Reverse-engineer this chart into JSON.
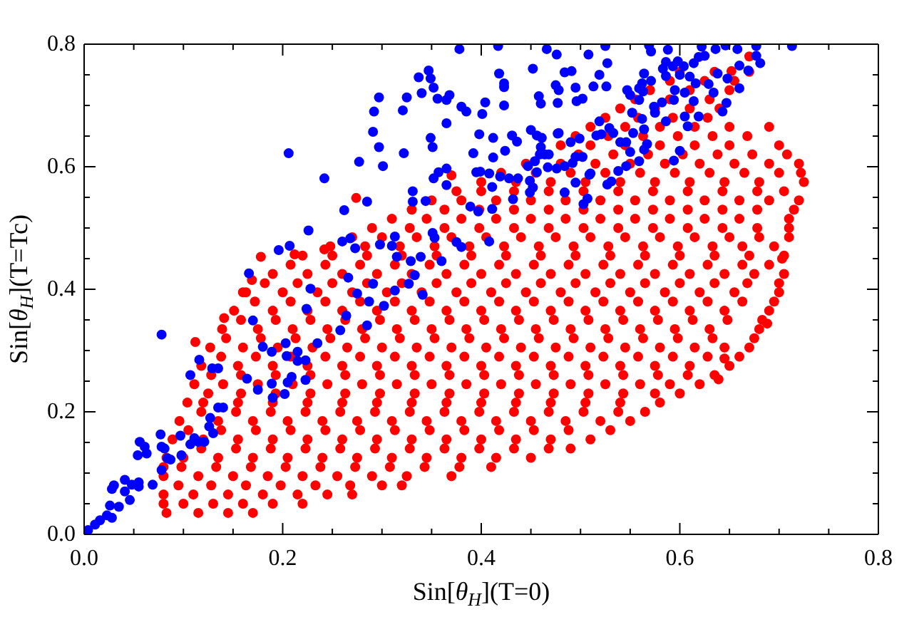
{
  "chart_data": {
    "type": "scatter",
    "xlabel": "Sin[θ$_{H}$](T=0)",
    "ylabel": "Sin[θ$_{H}$](T=Tc)",
    "marker": "circle",
    "xlim": [
      0,
      0.8
    ],
    "ylim": [
      0,
      0.8
    ],
    "xticks": [
      {
        "value": 0,
        "label": "0.0"
      },
      {
        "value": 0.05,
        "label": null
      },
      {
        "value": 0.1,
        "label": null
      },
      {
        "value": 0.15,
        "label": null
      },
      0.2,
      {
        "value": 0.25,
        "label": null
      },
      {
        "value": 0.3,
        "label": null
      },
      {
        "value": 0.35,
        "label": null
      },
      0.4,
      {
        "value": 0.45,
        "label": null
      },
      {
        "value": 0.5,
        "label": null
      },
      {
        "value": 0.55,
        "label": null
      },
      0.6,
      {
        "value": 0.65,
        "label": null
      },
      {
        "value": 0.7,
        "label": null
      },
      {
        "value": 0.75,
        "label": null
      },
      0.8
    ],
    "yticks": [
      {
        "value": 0,
        "label": "0.0"
      },
      {
        "value": 0.05,
        "label": null
      },
      {
        "value": 0.1,
        "label": null
      },
      {
        "value": 0.15,
        "label": null
      },
      0.2,
      {
        "value": 0.25,
        "label": null
      },
      {
        "value": 0.3,
        "label": null
      },
      {
        "value": 0.35,
        "label": null
      },
      0.4,
      {
        "value": 0.45,
        "label": null
      },
      {
        "value": 0.5,
        "label": null
      },
      {
        "value": 0.55,
        "label": null
      },
      0.6,
      {
        "value": 0.65,
        "label": null
      },
      {
        "value": 0.7,
        "label": null
      },
      {
        "value": 0.75,
        "label": null
      },
      0.8
    ],
    "series": [
      {
        "color": "#ff0000",
        "x": [
          0.083,
          0.115,
          0.145,
          0.17,
          0.08,
          0.11,
          0.145,
          0.18,
          0.215,
          0.245,
          0.27,
          0.08,
          0.115,
          0.15,
          0.185,
          0.22,
          0.255,
          0.29,
          0.325,
          0.37,
          0.083,
          0.1,
          0.135,
          0.17,
          0.205,
          0.24,
          0.275,
          0.31,
          0.345,
          0.38,
          0.415,
          0.45,
          0.089,
          0.12,
          0.155,
          0.19,
          0.225,
          0.26,
          0.295,
          0.33,
          0.365,
          0.4,
          0.435,
          0.47,
          0.51,
          0.096,
          0.135,
          0.17,
          0.205,
          0.24,
          0.275,
          0.31,
          0.345,
          0.38,
          0.415,
          0.45,
          0.485,
          0.52,
          0.55,
          0.104,
          0.12,
          0.155,
          0.19,
          0.225,
          0.26,
          0.295,
          0.33,
          0.365,
          0.4,
          0.435,
          0.47,
          0.505,
          0.54,
          0.58,
          0.111,
          0.14,
          0.175,
          0.21,
          0.245,
          0.28,
          0.315,
          0.35,
          0.385,
          0.42,
          0.455,
          0.49,
          0.525,
          0.56,
          0.59,
          0.62,
          0.118,
          0.155,
          0.19,
          0.225,
          0.26,
          0.295,
          0.33,
          0.365,
          0.4,
          0.435,
          0.47,
          0.505,
          0.54,
          0.575,
          0.61,
          0.65,
          0.127,
          0.16,
          0.195,
          0.23,
          0.265,
          0.3,
          0.335,
          0.37,
          0.405,
          0.44,
          0.475,
          0.51,
          0.545,
          0.58,
          0.615,
          0.645,
          0.67,
          0.139,
          0.175,
          0.21,
          0.245,
          0.28,
          0.315,
          0.35,
          0.385,
          0.42,
          0.455,
          0.49,
          0.525,
          0.56,
          0.595,
          0.63,
          0.68,
          0.151,
          0.19,
          0.225,
          0.26,
          0.295,
          0.33,
          0.365,
          0.4,
          0.435,
          0.47,
          0.505,
          0.54,
          0.575,
          0.61,
          0.645,
          0.69,
          0.163,
          0.2,
          0.235,
          0.27,
          0.305,
          0.34,
          0.375,
          0.41,
          0.445,
          0.48,
          0.515,
          0.55,
          0.585,
          0.62,
          0.655,
          0.7,
          0.19,
          0.225,
          0.26,
          0.295,
          0.33,
          0.365,
          0.4,
          0.435,
          0.47,
          0.505,
          0.54,
          0.575,
          0.61,
          0.645,
          0.675,
          0.705,
          0.22,
          0.25,
          0.285,
          0.32,
          0.355,
          0.39,
          0.425,
          0.46,
          0.495,
          0.53,
          0.565,
          0.6,
          0.635,
          0.67,
          0.705,
          0.27,
          0.3,
          0.335,
          0.37,
          0.405,
          0.44,
          0.475,
          0.51,
          0.545,
          0.58,
          0.615,
          0.65,
          0.68,
          0.71,
          0.31,
          0.345,
          0.38,
          0.415,
          0.45,
          0.485,
          0.52,
          0.555,
          0.59,
          0.625,
          0.66,
          0.71,
          0.35,
          0.38,
          0.415,
          0.45,
          0.485,
          0.52,
          0.555,
          0.59,
          0.625,
          0.66,
          0.69,
          0.72,
          0.4,
          0.435,
          0.47,
          0.505,
          0.54,
          0.575,
          0.61,
          0.645,
          0.68,
          0.725,
          0.445,
          0.48,
          0.515,
          0.55,
          0.585,
          0.62,
          0.655,
          0.69,
          0.72,
          0.48,
          0.51,
          0.545,
          0.58,
          0.615,
          0.65,
          0.7,
          0.51,
          0.545,
          0.58,
          0.615,
          0.65,
          0.69,
          0.54,
          0.575,
          0.61,
          0.64,
          0.57,
          0.61,
          0.65,
          0.6,
          0.635,
          0.67,
          0.112,
          0.141,
          0.16,
          0.169,
          0.178,
          0.212,
          0.242,
          0.274,
          0.37,
          0.639,
          0.645,
          0.688,
          0.703,
          0.652,
          0.67,
          0.08,
          0.1,
          0.13,
          0.16,
          0.19,
          0.22,
          0.095,
          0.128,
          0.163,
          0.198,
          0.233,
          0.268,
          0.3,
          0.32,
          0.08,
          0.098,
          0.133,
          0.168,
          0.203,
          0.238,
          0.273,
          0.308,
          0.343,
          0.378,
          0.41,
          0.118,
          0.153,
          0.188,
          0.223,
          0.258,
          0.293,
          0.328,
          0.363,
          0.398,
          0.433,
          0.468,
          0.49,
          0.105,
          0.138,
          0.173,
          0.208,
          0.243,
          0.278,
          0.313,
          0.348,
          0.383,
          0.418,
          0.453,
          0.488,
          0.53,
          0.118,
          0.153,
          0.188,
          0.223,
          0.258,
          0.293,
          0.328,
          0.363,
          0.398,
          0.433,
          0.468,
          0.503,
          0.538,
          0.565,
          0.125,
          0.158,
          0.193,
          0.228,
          0.263,
          0.298,
          0.333,
          0.368,
          0.403,
          0.438,
          0.473,
          0.508,
          0.543,
          0.575,
          0.6,
          0.128,
          0.158,
          0.193,
          0.228,
          0.263,
          0.298,
          0.333,
          0.368,
          0.403,
          0.438,
          0.473,
          0.508,
          0.543,
          0.578,
          0.608,
          0.635,
          0.138,
          0.173,
          0.208,
          0.243,
          0.278,
          0.313,
          0.348,
          0.383,
          0.418,
          0.453,
          0.488,
          0.523,
          0.558,
          0.593,
          0.628,
          0.66,
          0.143,
          0.178,
          0.213,
          0.248,
          0.283,
          0.318,
          0.353,
          0.388,
          0.423,
          0.458,
          0.493,
          0.528,
          0.563,
          0.598,
          0.633,
          0.675,
          0.158,
          0.193,
          0.228,
          0.263,
          0.298,
          0.333,
          0.368,
          0.403,
          0.438,
          0.473,
          0.508,
          0.543,
          0.578,
          0.613,
          0.648,
          0.683,
          0.172,
          0.208,
          0.243,
          0.278,
          0.313,
          0.348,
          0.383,
          0.418,
          0.453,
          0.488,
          0.523,
          0.558,
          0.593,
          0.628,
          0.663,
          0.695,
          0.182,
          0.215,
          0.25,
          0.285,
          0.32,
          0.355,
          0.39,
          0.425,
          0.46,
          0.495,
          0.53,
          0.565,
          0.6,
          0.635,
          0.668,
          0.7,
          0.208,
          0.243,
          0.278,
          0.313,
          0.348,
          0.383,
          0.418,
          0.453,
          0.488,
          0.523,
          0.558,
          0.593,
          0.628,
          0.663,
          0.69,
          0.248,
          0.283,
          0.318,
          0.353,
          0.388,
          0.423,
          0.458,
          0.493,
          0.528,
          0.563,
          0.598,
          0.633,
          0.663,
          0.695,
          0.29,
          0.328,
          0.363,
          0.398,
          0.433,
          0.468,
          0.503,
          0.538,
          0.573,
          0.608,
          0.643,
          0.678,
          0.71,
          0.33,
          0.363,
          0.398,
          0.433,
          0.468,
          0.503,
          0.538,
          0.573,
          0.608,
          0.643,
          0.678,
          0.715,
          0.375,
          0.4,
          0.433,
          0.468,
          0.503,
          0.538,
          0.573,
          0.608,
          0.643,
          0.678,
          0.705,
          0.42,
          0.455,
          0.49,
          0.525,
          0.56,
          0.595,
          0.63,
          0.665,
          0.7,
          0.722,
          0.498,
          0.533,
          0.568,
          0.603,
          0.638,
          0.673,
          0.708,
          0.495,
          0.528,
          0.563,
          0.598,
          0.633,
          0.668,
          0.525,
          0.558,
          0.593,
          0.628,
          0.555,
          0.59,
          0.63,
          0.59,
          0.625,
          0.655
        ],
        "values": [
          0.035,
          0.035,
          0.035,
          0.035,
          0.065,
          0.065,
          0.065,
          0.065,
          0.065,
          0.065,
          0.065,
          0.095,
          0.095,
          0.095,
          0.095,
          0.095,
          0.095,
          0.095,
          0.095,
          0.095,
          0.125,
          0.125,
          0.125,
          0.125,
          0.125,
          0.125,
          0.125,
          0.125,
          0.125,
          0.125,
          0.125,
          0.125,
          0.155,
          0.155,
          0.155,
          0.155,
          0.155,
          0.155,
          0.155,
          0.155,
          0.155,
          0.155,
          0.155,
          0.155,
          0.155,
          0.185,
          0.185,
          0.185,
          0.185,
          0.185,
          0.185,
          0.185,
          0.185,
          0.185,
          0.185,
          0.185,
          0.185,
          0.185,
          0.185,
          0.215,
          0.215,
          0.215,
          0.215,
          0.215,
          0.215,
          0.215,
          0.215,
          0.215,
          0.215,
          0.215,
          0.215,
          0.215,
          0.215,
          0.215,
          0.245,
          0.245,
          0.245,
          0.245,
          0.245,
          0.245,
          0.245,
          0.245,
          0.245,
          0.245,
          0.245,
          0.245,
          0.245,
          0.245,
          0.245,
          0.245,
          0.275,
          0.275,
          0.275,
          0.275,
          0.275,
          0.275,
          0.275,
          0.275,
          0.275,
          0.275,
          0.275,
          0.275,
          0.275,
          0.275,
          0.275,
          0.275,
          0.305,
          0.305,
          0.305,
          0.305,
          0.305,
          0.305,
          0.305,
          0.305,
          0.305,
          0.305,
          0.305,
          0.305,
          0.305,
          0.305,
          0.305,
          0.305,
          0.305,
          0.335,
          0.335,
          0.335,
          0.335,
          0.335,
          0.335,
          0.335,
          0.335,
          0.335,
          0.335,
          0.335,
          0.335,
          0.335,
          0.335,
          0.335,
          0.335,
          0.365,
          0.365,
          0.365,
          0.365,
          0.365,
          0.365,
          0.365,
          0.365,
          0.365,
          0.365,
          0.365,
          0.365,
          0.365,
          0.365,
          0.365,
          0.365,
          0.395,
          0.395,
          0.395,
          0.395,
          0.395,
          0.395,
          0.395,
          0.395,
          0.395,
          0.395,
          0.395,
          0.395,
          0.395,
          0.395,
          0.395,
          0.395,
          0.425,
          0.425,
          0.425,
          0.425,
          0.425,
          0.425,
          0.425,
          0.425,
          0.425,
          0.425,
          0.425,
          0.425,
          0.425,
          0.425,
          0.425,
          0.425,
          0.455,
          0.455,
          0.455,
          0.455,
          0.455,
          0.455,
          0.455,
          0.455,
          0.455,
          0.455,
          0.455,
          0.455,
          0.455,
          0.455,
          0.455,
          0.485,
          0.485,
          0.485,
          0.485,
          0.485,
          0.485,
          0.485,
          0.485,
          0.485,
          0.485,
          0.485,
          0.485,
          0.485,
          0.485,
          0.515,
          0.515,
          0.515,
          0.515,
          0.515,
          0.515,
          0.515,
          0.515,
          0.515,
          0.515,
          0.515,
          0.515,
          0.545,
          0.545,
          0.545,
          0.545,
          0.545,
          0.545,
          0.545,
          0.545,
          0.545,
          0.545,
          0.545,
          0.545,
          0.575,
          0.575,
          0.575,
          0.575,
          0.575,
          0.575,
          0.575,
          0.575,
          0.575,
          0.575,
          0.605,
          0.605,
          0.605,
          0.605,
          0.605,
          0.605,
          0.605,
          0.605,
          0.605,
          0.635,
          0.635,
          0.635,
          0.635,
          0.635,
          0.635,
          0.635,
          0.665,
          0.665,
          0.665,
          0.665,
          0.665,
          0.665,
          0.695,
          0.695,
          0.695,
          0.695,
          0.725,
          0.725,
          0.725,
          0.755,
          0.755,
          0.755,
          0.314,
          0.353,
          0.395,
          0.415,
          0.453,
          0.457,
          0.465,
          0.549,
          0.586,
          0.253,
          0.287,
          0.344,
          0.45,
          0.756,
          0.78,
          0.05,
          0.05,
          0.05,
          0.05,
          0.05,
          0.05,
          0.08,
          0.08,
          0.08,
          0.08,
          0.08,
          0.08,
          0.08,
          0.08,
          0.11,
          0.11,
          0.11,
          0.11,
          0.11,
          0.11,
          0.11,
          0.11,
          0.11,
          0.11,
          0.11,
          0.14,
          0.14,
          0.14,
          0.14,
          0.14,
          0.14,
          0.14,
          0.14,
          0.14,
          0.14,
          0.14,
          0.14,
          0.17,
          0.17,
          0.17,
          0.17,
          0.17,
          0.17,
          0.17,
          0.17,
          0.17,
          0.17,
          0.17,
          0.17,
          0.17,
          0.2,
          0.2,
          0.2,
          0.2,
          0.2,
          0.2,
          0.2,
          0.2,
          0.2,
          0.2,
          0.2,
          0.2,
          0.2,
          0.2,
          0.23,
          0.23,
          0.23,
          0.23,
          0.23,
          0.23,
          0.23,
          0.23,
          0.23,
          0.23,
          0.23,
          0.23,
          0.23,
          0.23,
          0.23,
          0.26,
          0.26,
          0.26,
          0.26,
          0.26,
          0.26,
          0.26,
          0.26,
          0.26,
          0.26,
          0.26,
          0.26,
          0.26,
          0.26,
          0.26,
          0.26,
          0.29,
          0.29,
          0.29,
          0.29,
          0.29,
          0.29,
          0.29,
          0.29,
          0.29,
          0.29,
          0.29,
          0.29,
          0.29,
          0.29,
          0.29,
          0.29,
          0.32,
          0.32,
          0.32,
          0.32,
          0.32,
          0.32,
          0.32,
          0.32,
          0.32,
          0.32,
          0.32,
          0.32,
          0.32,
          0.32,
          0.32,
          0.32,
          0.35,
          0.35,
          0.35,
          0.35,
          0.35,
          0.35,
          0.35,
          0.35,
          0.35,
          0.35,
          0.35,
          0.35,
          0.35,
          0.35,
          0.35,
          0.35,
          0.38,
          0.38,
          0.38,
          0.38,
          0.38,
          0.38,
          0.38,
          0.38,
          0.38,
          0.38,
          0.38,
          0.38,
          0.38,
          0.38,
          0.38,
          0.38,
          0.41,
          0.41,
          0.41,
          0.41,
          0.41,
          0.41,
          0.41,
          0.41,
          0.41,
          0.41,
          0.41,
          0.41,
          0.41,
          0.41,
          0.41,
          0.41,
          0.44,
          0.44,
          0.44,
          0.44,
          0.44,
          0.44,
          0.44,
          0.44,
          0.44,
          0.44,
          0.44,
          0.44,
          0.44,
          0.44,
          0.44,
          0.47,
          0.47,
          0.47,
          0.47,
          0.47,
          0.47,
          0.47,
          0.47,
          0.47,
          0.47,
          0.47,
          0.47,
          0.47,
          0.47,
          0.5,
          0.5,
          0.5,
          0.5,
          0.5,
          0.5,
          0.5,
          0.5,
          0.5,
          0.5,
          0.5,
          0.5,
          0.5,
          0.53,
          0.53,
          0.53,
          0.53,
          0.53,
          0.53,
          0.53,
          0.53,
          0.53,
          0.53,
          0.53,
          0.53,
          0.56,
          0.56,
          0.56,
          0.56,
          0.56,
          0.56,
          0.56,
          0.56,
          0.56,
          0.56,
          0.56,
          0.59,
          0.59,
          0.59,
          0.59,
          0.59,
          0.59,
          0.59,
          0.59,
          0.59,
          0.59,
          0.62,
          0.62,
          0.62,
          0.62,
          0.62,
          0.62,
          0.62,
          0.65,
          0.65,
          0.65,
          0.65,
          0.65,
          0.65,
          0.68,
          0.68,
          0.68,
          0.68,
          0.71,
          0.71,
          0.71,
          0.74,
          0.74,
          0.74
        ]
      },
      {
        "color": "#0000ff",
        "x": [
          0.004,
          0.011,
          0.016,
          0.023,
          0.028,
          0.026,
          0.035,
          0.028,
          0.03,
          0.041,
          0.041,
          0.046,
          0.048,
          0.055,
          0.055,
          0.069,
          0.054,
          0.056,
          0.061,
          0.063,
          0.077,
          0.078,
          0.081,
          0.084,
          0.087,
          0.078,
          0.078,
          0.097,
          0.098,
          0.107,
          0.111,
          0.115,
          0.121,
          0.126,
          0.13,
          0.127,
          0.135,
          0.14,
          0.107,
          0.116,
          0.129,
          0.135,
          0.17,
          0.164,
          0.175,
          0.18,
          0.189,
          0.189,
          0.19,
          0.203,
          0.202,
          0.204,
          0.205,
          0.209,
          0.215,
          0.215,
          0.223,
          0.223,
          0.224,
          0.235,
          0.228,
          0.258,
          0.264,
          0.275,
          0.285,
          0.287,
          0.302,
          0.313,
          0.341,
          0.378,
          0.347,
          0.337,
          0.349,
          0.34,
          0.352,
          0.356,
          0.365,
          0.368,
          0.38,
          0.385,
          0.297,
          0.292,
          0.325,
          0.321,
          0.291,
          0.297,
          0.322,
          0.349,
          0.351,
          0.365,
          0.301,
          0.277,
          0.206,
          0.242,
          0.262,
          0.285,
          0.331,
          0.331,
          0.344,
          0.352,
          0.357,
          0.365,
          0.365,
          0.226,
          0.196,
          0.207,
          0.26,
          0.268,
          0.273,
          0.298,
          0.31,
          0.313,
          0.315,
          0.329,
          0.339,
          0.351,
          0.353,
          0.36,
          0.375,
          0.166,
          0.266,
          0.291,
          0.327,
          0.333,
          0.417,
          0.466,
          0.476,
          0.508,
          0.525,
          0.569,
          0.571,
          0.588,
          0.622,
          0.636,
          0.646,
          0.658,
          0.677,
          0.713,
          0.677,
          0.681,
          0.669,
          0.66,
          0.66,
          0.648,
          0.638,
          0.625,
          0.619,
          0.614,
          0.604,
          0.598,
          0.593,
          0.586,
          0.583,
          0.6,
          0.61,
          0.616,
          0.629,
          0.634,
          0.647,
          0.643,
          0.586,
          0.571,
          0.562,
          0.564,
          0.559,
          0.547,
          0.55,
          0.559,
          0.574,
          0.582,
          0.595,
          0.594,
          0.605,
          0.614,
          0.619,
          0.608,
          0.605,
          0.586,
          0.575,
          0.562,
          0.552,
          0.564,
          0.553,
          0.567,
          0.564,
          0.6,
          0.594,
          0.533,
          0.546,
          0.546,
          0.559,
          0.538,
          0.519,
          0.529,
          0.521,
          0.516,
          0.499,
          0.49,
          0.495,
          0.502,
          0.492,
          0.478,
          0.46,
          0.468,
          0.459,
          0.454,
          0.447,
          0.484,
          0.476,
          0.467,
          0.449,
          0.456,
          0.437,
          0.428,
          0.419,
          0.408,
          0.395,
          0.399,
          0.449,
          0.452,
          0.484,
          0.495,
          0.509,
          0.507,
          0.503,
          0.51,
          0.527,
          0.531,
          0.411,
          0.389,
          0.397,
          0.408,
          0.38,
          0.452,
          0.418,
          0.423,
          0.423,
          0.423,
          0.458,
          0.46,
          0.477,
          0.484,
          0.475,
          0.478,
          0.495,
          0.496,
          0.502,
          0.491,
          0.519,
          0.527,
          0.513,
          0.526,
          0.404,
          0.401,
          0.398,
          0.392,
          0.412,
          0.412,
          0.424,
          0.431,
          0.436,
          0.45,
          0.456,
          0.461,
          0.477,
          0.464,
          0.432,
          0.411,
          0.54,
          0.55,
          0.563
        ],
        "values": [
          0.007,
          0.016,
          0.023,
          0.031,
          0.027,
          0.047,
          0.045,
          0.074,
          0.08,
          0.089,
          0.07,
          0.056,
          0.081,
          0.085,
          0.078,
          0.081,
          0.129,
          0.151,
          0.143,
          0.132,
          0.163,
          0.143,
          0.14,
          0.124,
          0.122,
          0.105,
          0.326,
          0.161,
          0.129,
          0.147,
          0.157,
          0.151,
          0.151,
          0.176,
          0.165,
          0.19,
          0.207,
          0.207,
          0.26,
          0.285,
          0.271,
          0.271,
          0.349,
          0.254,
          0.236,
          0.306,
          0.246,
          0.298,
          0.223,
          0.312,
          0.229,
          0.291,
          0.248,
          0.257,
          0.298,
          0.283,
          0.284,
          0.252,
          0.368,
          0.312,
          0.401,
          0.333,
          0.357,
          0.393,
          0.341,
          0.38,
          0.373,
          0.398,
          0.391,
          0.792,
          0.757,
          0.746,
          0.744,
          0.72,
          0.729,
          0.711,
          0.709,
          0.717,
          0.698,
          0.69,
          0.713,
          0.69,
          0.713,
          0.692,
          0.657,
          0.632,
          0.622,
          0.647,
          0.632,
          0.671,
          0.601,
          0.608,
          0.622,
          0.581,
          0.529,
          0.543,
          0.56,
          0.543,
          0.544,
          0.581,
          0.591,
          0.597,
          0.57,
          0.496,
          0.464,
          0.471,
          0.478,
          0.483,
          0.467,
          0.473,
          0.471,
          0.486,
          0.453,
          0.446,
          0.453,
          0.492,
          0.484,
          0.446,
          0.477,
          0.426,
          0.419,
          0.409,
          0.409,
          0.423,
          0.797,
          0.792,
          0.783,
          0.783,
          0.797,
          0.798,
          0.788,
          0.791,
          0.796,
          0.792,
          0.798,
          0.792,
          0.797,
          0.797,
          0.781,
          0.769,
          0.757,
          0.765,
          0.728,
          0.744,
          0.752,
          0.781,
          0.779,
          0.769,
          0.764,
          0.772,
          0.764,
          0.771,
          0.76,
          0.75,
          0.747,
          0.736,
          0.735,
          0.721,
          0.704,
          0.69,
          0.748,
          0.74,
          0.736,
          0.752,
          0.728,
          0.725,
          0.717,
          0.709,
          0.698,
          0.705,
          0.725,
          0.709,
          0.721,
          0.707,
          0.682,
          0.666,
          0.682,
          0.674,
          0.688,
          0.678,
          0.688,
          0.661,
          0.655,
          0.637,
          0.628,
          0.626,
          0.61,
          0.655,
          0.64,
          0.601,
          0.609,
          0.593,
          0.674,
          0.663,
          0.653,
          0.651,
          0.646,
          0.64,
          0.616,
          0.616,
          0.606,
          0.655,
          0.632,
          0.62,
          0.62,
          0.609,
          0.601,
          0.601,
          0.597,
          0.599,
          0.577,
          0.591,
          0.581,
          0.581,
          0.584,
          0.589,
          0.591,
          0.592,
          0.558,
          0.566,
          0.558,
          0.574,
          0.587,
          0.548,
          0.539,
          0.589,
          0.571,
          0.576,
          0.567,
          0.535,
          0.527,
          0.478,
          0.469,
          0.76,
          0.752,
          0.736,
          0.73,
          0.7,
          0.715,
          0.703,
          0.704,
          0.754,
          0.733,
          0.725,
          0.729,
          0.707,
          0.711,
          0.756,
          0.75,
          0.769,
          0.731,
          0.731,
          0.705,
          0.686,
          0.653,
          0.622,
          0.647,
          0.615,
          0.626,
          0.651,
          0.641,
          0.66,
          0.651,
          0.647,
          0.654,
          0.62,
          0.547,
          0.531,
          0.64,
          0.624,
          0.723
        ]
      }
    ]
  }
}
